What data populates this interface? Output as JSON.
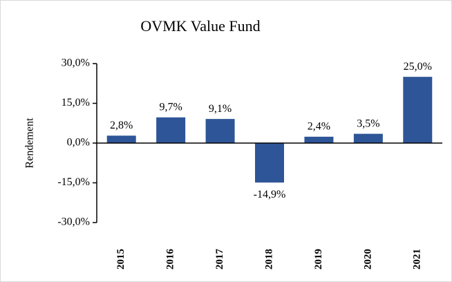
{
  "chart_data": {
    "type": "bar",
    "title": "OVMK  Value Fund",
    "y_label": "Rendement",
    "categories": [
      "2015",
      "2016",
      "2017",
      "2018",
      "2019",
      "2020",
      "2021"
    ],
    "values": [
      2.8,
      9.7,
      9.1,
      -14.9,
      2.4,
      3.5,
      25.0
    ],
    "value_labels": [
      "2,8%",
      "9,7%",
      "9,1%",
      "-14,9%",
      "2,4%",
      "3,5%",
      "25,0%"
    ],
    "color": "#2e5597",
    "ylim": [
      -30,
      30
    ],
    "yticks": [
      {
        "value": -30,
        "label": "-30,0%"
      },
      {
        "value": -15,
        "label": "-15,0%"
      },
      {
        "value": 0,
        "label": "0,0%"
      },
      {
        "value": 15,
        "label": "15,0%"
      },
      {
        "value": 30,
        "label": "30,0%"
      }
    ],
    "grid": false
  }
}
